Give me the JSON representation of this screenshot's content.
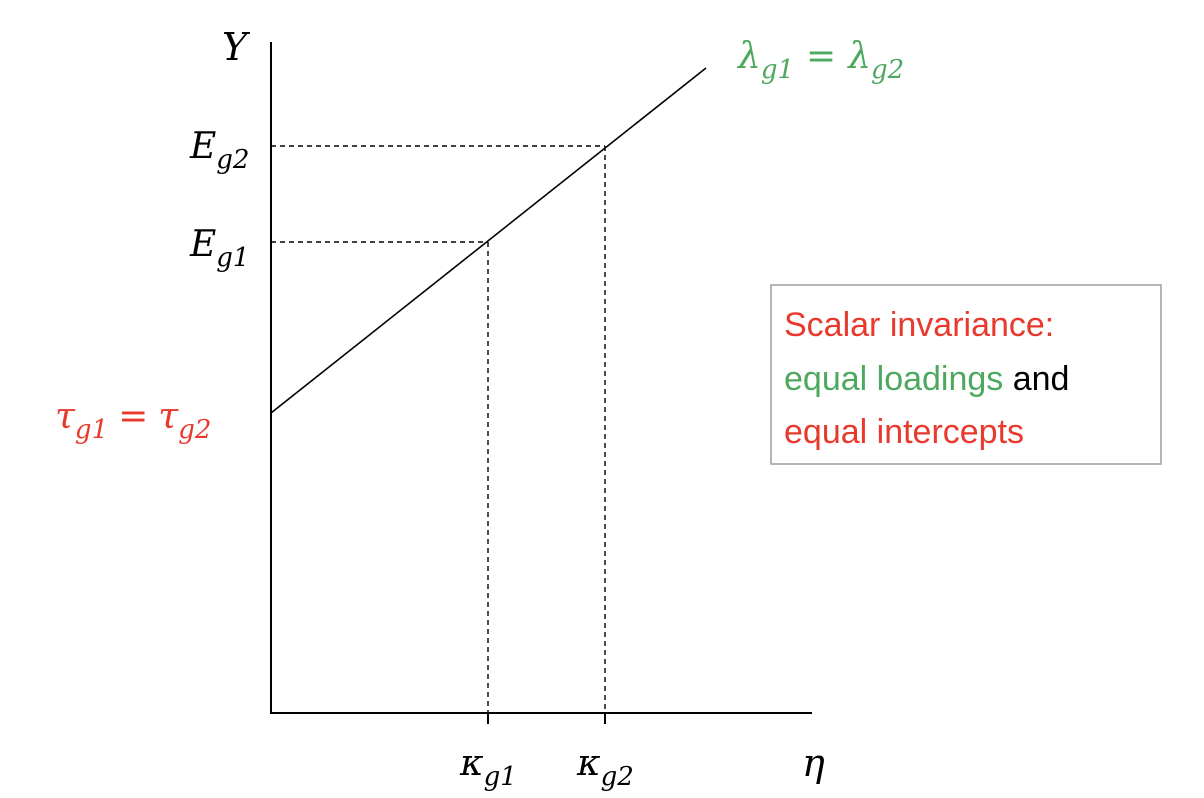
{
  "colors": {
    "axis": "#000000",
    "red": "#e8392d",
    "green": "#4ea860",
    "box_border": "#9e9e9e",
    "text": "#000000"
  },
  "labels": {
    "y_axis": {
      "base": "Y"
    },
    "x_axis": {
      "base": "η"
    },
    "slope": {
      "left_base": "λ",
      "left_sub": "g1",
      "equals": "=",
      "right_base": "λ",
      "right_sub": "g2"
    },
    "intercept": {
      "left_base": "τ",
      "left_sub": "g1",
      "equals": "=",
      "right_base": "τ",
      "right_sub": "g2"
    },
    "e_g2": {
      "base": "E",
      "sub": "g2"
    },
    "e_g1": {
      "base": "E",
      "sub": "g1"
    },
    "kappa_g1": {
      "base": "κ",
      "sub": "g1"
    },
    "kappa_g2": {
      "base": "κ",
      "sub": "g2"
    }
  },
  "annotation": {
    "line1": "Scalar invariance:",
    "line2_green": "equal loadings",
    "line2_black": " and",
    "line3": "equal intercepts"
  }
}
